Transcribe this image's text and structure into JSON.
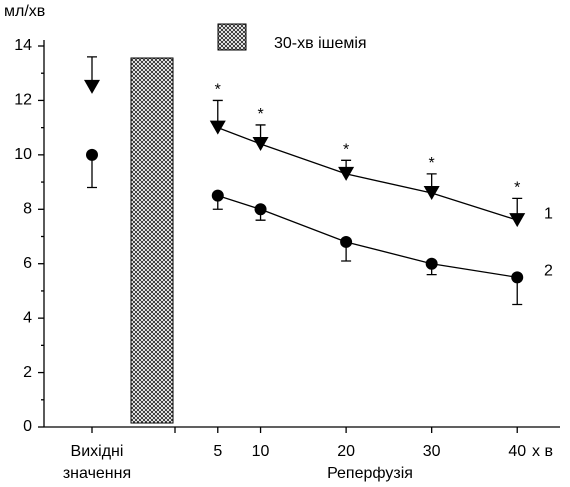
{
  "chart_data": {
    "type": "line",
    "y_label": "мл/хв",
    "x_label": "Реперфузія",
    "x_unit": "х в",
    "baseline_label": [
      "Вихідні",
      "значення"
    ],
    "legend_label": "30-хв ішемія",
    "x": [
      5,
      10,
      20,
      30,
      40
    ],
    "xlim": [
      0,
      45
    ],
    "xticks": [
      5,
      10,
      20,
      30,
      40
    ],
    "ylim": [
      0,
      14
    ],
    "yticks": [
      0,
      2,
      4,
      6,
      8,
      10,
      12,
      14
    ],
    "series": [
      {
        "name": "1",
        "marker": "triangle",
        "color": "#000000",
        "error_direction": "up",
        "baseline": 12.5,
        "baseline_error": 1.1,
        "values": [
          11.0,
          10.4,
          9.3,
          8.6,
          7.6
        ],
        "errors": [
          1.0,
          0.7,
          0.5,
          0.7,
          0.8
        ],
        "annotations": [
          "*",
          "*",
          "*",
          "*",
          "*"
        ]
      },
      {
        "name": "2",
        "marker": "circle",
        "color": "#000000",
        "error_direction": "down",
        "baseline": 10.0,
        "baseline_error": 1.2,
        "values": [
          8.5,
          8.0,
          6.8,
          6.0,
          5.5
        ],
        "errors": [
          0.5,
          0.4,
          0.7,
          0.4,
          1.0
        ]
      }
    ]
  }
}
